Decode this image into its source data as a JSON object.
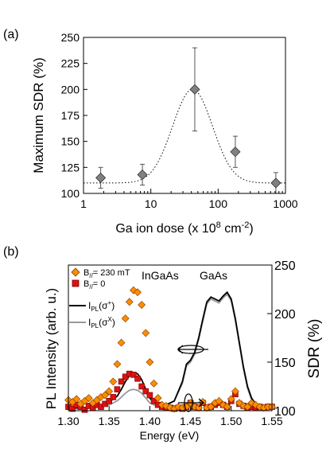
{
  "chart_data": [
    {
      "panel_label": "(a)",
      "type": "scatter",
      "xlabel_main": "Ga ion dose (x 10",
      "xlabel_sup1": "8",
      "xlabel_mid": " cm",
      "xlabel_sup2": "-2",
      "xlabel_end": ")",
      "ylabel": "Maximum SDR (%)",
      "xscale": "log",
      "xlim": [
        1,
        1000
      ],
      "ylim": [
        100,
        250
      ],
      "x_ticks": [
        1,
        10,
        100,
        1000
      ],
      "x_tick_labels": [
        "1",
        "10",
        "100",
        "1000"
      ],
      "y_ticks": [
        100,
        125,
        150,
        175,
        200,
        225,
        250
      ],
      "y_tick_labels": [
        "100",
        "125",
        "150",
        "175",
        "200",
        "225",
        "250"
      ],
      "grid": false,
      "points": [
        {
          "x": 1.8,
          "y": 115,
          "err": 10
        },
        {
          "x": 7.5,
          "y": 118,
          "err": 10
        },
        {
          "x": 45,
          "y": 200,
          "err": 40
        },
        {
          "x": 180,
          "y": 140,
          "err": 15
        },
        {
          "x": 720,
          "y": 110,
          "err": 10
        }
      ],
      "fit": {
        "style": "dotted",
        "baseline": 110,
        "amplitude": 90,
        "center_log10": 1.62,
        "width_log10": 0.42
      },
      "marker_color": "#808080"
    },
    {
      "panel_label": "(b)",
      "type": "line",
      "xlabel": "Energy (eV)",
      "ylabel_left": "PL Intensity (arb. u.)",
      "ylabel_right": "SDR (%)",
      "xlim": [
        1.3,
        1.55
      ],
      "x_ticks": [
        1.3,
        1.35,
        1.4,
        1.45,
        1.5,
        1.55
      ],
      "x_tick_labels": [
        "1.30",
        "1.35",
        "1.40",
        "1.45",
        "1.50",
        "1.55"
      ],
      "ylim_right": [
        100,
        250
      ],
      "y_ticks_right": [
        100,
        150,
        200,
        250
      ],
      "y_tick_labels_right": [
        "100",
        "150",
        "200",
        "250"
      ],
      "annotations": [
        "InGaAs",
        "GaAs"
      ],
      "legend": [
        {
          "label": "B",
          "sub": "//",
          "rest": "= 230 mT",
          "color": "#ff8c00",
          "marker": "diamond"
        },
        {
          "label": "B",
          "sub": "//",
          "rest": "= 0",
          "color": "#dd1111",
          "marker": "square"
        },
        {
          "label": "I",
          "sub": "PL",
          "rest": "(σ",
          "sup": "+",
          "end": ")",
          "color": "#000000",
          "marker": "line"
        },
        {
          "label": "I",
          "sub": "PL",
          "rest": "(σ",
          "sup": "X",
          "end": ")",
          "color": "#999999",
          "marker": "line"
        }
      ],
      "series": [
        {
          "name": "B// = 230 mT",
          "color": "#ff8c00",
          "marker": "diamond",
          "x": [
            1.3,
            1.305,
            1.31,
            1.315,
            1.32,
            1.325,
            1.33,
            1.335,
            1.34,
            1.345,
            1.35,
            1.355,
            1.36,
            1.365,
            1.37,
            1.375,
            1.38,
            1.385,
            1.39,
            1.395,
            1.4,
            1.405,
            1.41,
            1.415,
            1.42,
            1.425,
            1.43,
            1.435,
            1.44,
            1.445,
            1.45,
            1.455,
            1.46,
            1.465,
            1.47,
            1.475,
            1.48,
            1.485,
            1.49,
            1.495,
            1.5,
            1.505,
            1.51,
            1.515,
            1.52,
            1.525,
            1.53,
            1.535,
            1.54,
            1.545,
            1.55
          ],
          "y": [
            111,
            109,
            112,
            107,
            110,
            113,
            108,
            111,
            114,
            116,
            120,
            130,
            148,
            170,
            195,
            212,
            224,
            222,
            209,
            180,
            150,
            128,
            113,
            106,
            105,
            103,
            102,
            104,
            103,
            104,
            108,
            104,
            103,
            109,
            103,
            104,
            108,
            110,
            106,
            104,
            112,
            120,
            108,
            105,
            104,
            108,
            106,
            104,
            103,
            104,
            104
          ]
        },
        {
          "name": "B// = 0",
          "color": "#dd1111",
          "marker": "square",
          "x": [
            1.3,
            1.305,
            1.31,
            1.315,
            1.32,
            1.325,
            1.33,
            1.335,
            1.34,
            1.345,
            1.35,
            1.355,
            1.36,
            1.365,
            1.37,
            1.375,
            1.38,
            1.385,
            1.39,
            1.395,
            1.4,
            1.405,
            1.41,
            1.415,
            1.42,
            1.425,
            1.43,
            1.435,
            1.44,
            1.445,
            1.45,
            1.455,
            1.46,
            1.465,
            1.47,
            1.475,
            1.48,
            1.485,
            1.49,
            1.495,
            1.5,
            1.505,
            1.51,
            1.515,
            1.52,
            1.525,
            1.53,
            1.535,
            1.54,
            1.545,
            1.55
          ],
          "y": [
            104,
            102,
            106,
            104,
            101,
            105,
            103,
            106,
            104,
            107,
            110,
            114,
            122,
            130,
            135,
            138,
            137,
            133,
            125,
            120,
            116,
            110,
            106,
            104,
            103,
            103,
            102,
            103,
            102,
            104,
            108,
            104,
            103,
            108,
            103,
            104,
            106,
            108,
            106,
            104,
            110,
            117,
            107,
            105,
            103,
            104,
            103,
            104,
            103,
            104,
            104
          ]
        },
        {
          "name": "IPL(σ+)",
          "color": "#000000",
          "x": [
            1.3,
            1.31,
            1.32,
            1.33,
            1.34,
            1.35,
            1.36,
            1.365,
            1.37,
            1.375,
            1.38,
            1.385,
            1.39,
            1.395,
            1.4,
            1.405,
            1.41,
            1.42,
            1.43,
            1.44,
            1.445,
            1.45,
            1.455,
            1.46,
            1.465,
            1.47,
            1.475,
            1.48,
            1.485,
            1.49,
            1.495,
            1.5,
            1.505,
            1.51,
            1.515,
            1.52,
            1.525,
            1.53,
            1.54,
            1.55
          ],
          "y": [
            103,
            103,
            103,
            104,
            106,
            109,
            115,
            122,
            130,
            136,
            139,
            138,
            132,
            122,
            113,
            108,
            106,
            106,
            110,
            130,
            148,
            152,
            160,
            175,
            194,
            212,
            217,
            215,
            213,
            218,
            222,
            215,
            195,
            170,
            145,
            125,
            113,
            107,
            104,
            103
          ]
        },
        {
          "name": "IPL(σX)",
          "color": "#999999",
          "x": [
            1.3,
            1.31,
            1.32,
            1.33,
            1.34,
            1.35,
            1.36,
            1.365,
            1.37,
            1.375,
            1.38,
            1.385,
            1.39,
            1.395,
            1.4,
            1.405,
            1.41,
            1.42,
            1.43,
            1.44,
            1.445,
            1.45,
            1.455,
            1.46,
            1.465,
            1.47,
            1.475,
            1.48,
            1.485,
            1.49,
            1.495,
            1.5,
            1.505,
            1.51,
            1.515,
            1.52,
            1.525,
            1.53,
            1.54,
            1.55
          ],
          "y": [
            102,
            102,
            102,
            103,
            104,
            106,
            110,
            114,
            118,
            121,
            122,
            121,
            118,
            113,
            108,
            106,
            105,
            106,
            110,
            128,
            146,
            150,
            158,
            173,
            192,
            210,
            215,
            213,
            211,
            216,
            220,
            213,
            193,
            168,
            143,
            123,
            111,
            105,
            103,
            102
          ]
        }
      ]
    }
  ]
}
